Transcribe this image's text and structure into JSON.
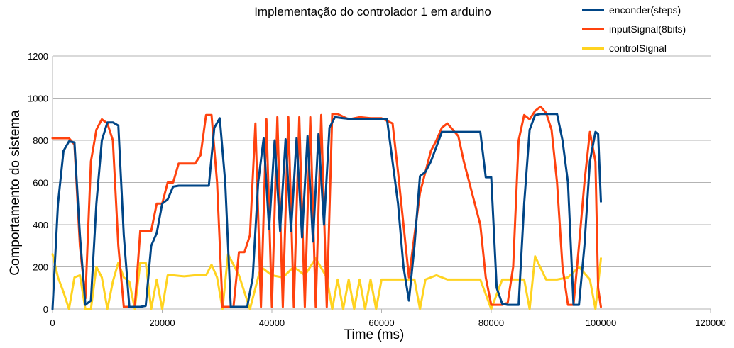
{
  "chart_data": {
    "type": "line",
    "title": "Implementação do controlador 1 em arduino",
    "xlabel": "Time (ms)",
    "ylabel": "Comportamento do sistema",
    "xlim": [
      0,
      120000
    ],
    "ylim": [
      0,
      1200
    ],
    "xticks": [
      "0",
      "20000",
      "40000",
      "60000",
      "80000",
      "100000",
      "120000"
    ],
    "yticks": [
      "0",
      "200",
      "400",
      "600",
      "800",
      "1000",
      "1200"
    ],
    "grid": true,
    "legend_position": "top-right",
    "series": [
      {
        "name": "enconder(steps)",
        "color": "#004586",
        "x": [
          0,
          1000,
          2000,
          3000,
          4000,
          5000,
          6000,
          7000,
          8000,
          9000,
          10000,
          11000,
          12000,
          13000,
          14000,
          15000,
          16000,
          17000,
          18000,
          19000,
          20000,
          21000,
          22000,
          23000,
          24000,
          25000,
          26000,
          27000,
          28000,
          28500,
          29500,
          30500,
          31500,
          32500,
          33500,
          34500,
          35500,
          36500,
          37500,
          38500,
          39500,
          40500,
          41500,
          42500,
          43500,
          44500,
          45500,
          46500,
          47500,
          48500,
          49500,
          50500,
          51500,
          53000,
          55000,
          57000,
          59000,
          61000,
          63000,
          64000,
          65000,
          66000,
          67000,
          68000,
          69000,
          70000,
          71000,
          72000,
          73000,
          74000,
          75000,
          76000,
          78000,
          79000,
          80000,
          81000,
          82000,
          83000,
          84000,
          85000,
          86000,
          87000,
          88000,
          89000,
          90000,
          91000,
          92000,
          93000,
          94000,
          95000,
          96000,
          97000,
          98000,
          99000,
          99500,
          100000
        ],
        "y": [
          0,
          500,
          750,
          795,
          790,
          350,
          20,
          40,
          500,
          800,
          885,
          885,
          870,
          350,
          10,
          10,
          10,
          15,
          300,
          360,
          500,
          520,
          580,
          585,
          585,
          585,
          585,
          585,
          585,
          585,
          860,
          905,
          600,
          10,
          10,
          10,
          10,
          150,
          600,
          810,
          380,
          800,
          370,
          805,
          370,
          810,
          340,
          820,
          320,
          830,
          400,
          860,
          910,
          905,
          900,
          900,
          900,
          900,
          500,
          200,
          40,
          300,
          630,
          650,
          700,
          770,
          840,
          840,
          840,
          840,
          840,
          840,
          840,
          625,
          625,
          100,
          25,
          20,
          20,
          20,
          500,
          850,
          920,
          925,
          925,
          925,
          925,
          800,
          600,
          20,
          20,
          300,
          700,
          840,
          830,
          510
        ]
      },
      {
        "name": "inputSignal(8bits)",
        "color": "#ff420e",
        "x": [
          0,
          1000,
          2000,
          3000,
          4000,
          5000,
          6000,
          7000,
          8000,
          9000,
          10000,
          11000,
          12000,
          13000,
          14000,
          15000,
          16000,
          17000,
          18000,
          19000,
          20000,
          21000,
          22000,
          23000,
          24000,
          25000,
          26000,
          27000,
          28000,
          29000,
          30000,
          31000,
          32000,
          33000,
          34000,
          35000,
          36000,
          37000,
          38000,
          39000,
          40000,
          41000,
          42000,
          43000,
          44000,
          45000,
          46000,
          47000,
          48000,
          49000,
          50000,
          51000,
          52000,
          54000,
          56000,
          58000,
          60000,
          62000,
          63000,
          64000,
          65000,
          66000,
          67000,
          68000,
          69000,
          70000,
          71000,
          72000,
          73000,
          74000,
          75000,
          76000,
          78000,
          79000,
          80000,
          81000,
          82000,
          83000,
          84000,
          85000,
          86000,
          87000,
          88000,
          89000,
          90000,
          91000,
          92000,
          93000,
          94000,
          95000,
          96000,
          97000,
          98000,
          99000,
          99500,
          100000
        ],
        "y": [
          810,
          810,
          810,
          810,
          780,
          300,
          50,
          700,
          850,
          900,
          880,
          800,
          300,
          10,
          10,
          10,
          370,
          370,
          370,
          500,
          500,
          600,
          600,
          690,
          690,
          690,
          690,
          730,
          920,
          920,
          600,
          10,
          10,
          10,
          270,
          270,
          350,
          880,
          10,
          900,
          10,
          910,
          10,
          910,
          10,
          910,
          10,
          910,
          10,
          920,
          10,
          925,
          925,
          900,
          910,
          905,
          905,
          880,
          650,
          400,
          150,
          350,
          550,
          650,
          750,
          800,
          860,
          880,
          850,
          820,
          700,
          600,
          400,
          150,
          20,
          20,
          20,
          30,
          200,
          800,
          920,
          900,
          940,
          960,
          930,
          850,
          600,
          200,
          20,
          20,
          300,
          600,
          840,
          700,
          100,
          10
        ]
      },
      {
        "name": "controlSignal",
        "color": "#ffd320",
        "x": [
          0,
          1000,
          2000,
          3000,
          4000,
          5000,
          6000,
          7000,
          8000,
          9000,
          10000,
          11000,
          12000,
          13000,
          14000,
          15000,
          16000,
          17000,
          18000,
          19000,
          20000,
          21000,
          22000,
          24000,
          26000,
          28000,
          29000,
          30000,
          31000,
          32000,
          34000,
          36000,
          38000,
          40000,
          42000,
          44000,
          46000,
          48000,
          50000,
          51000,
          52000,
          53000,
          54000,
          55000,
          56000,
          57000,
          58000,
          59000,
          60000,
          62000,
          64000,
          66000,
          67000,
          68000,
          70000,
          72000,
          74000,
          76000,
          78000,
          80000,
          82000,
          84000,
          86000,
          87000,
          88000,
          90000,
          92000,
          94000,
          96000,
          98000,
          99000,
          100000
        ],
        "y": [
          260,
          150,
          80,
          0,
          150,
          160,
          0,
          0,
          200,
          150,
          0,
          130,
          220,
          150,
          130,
          0,
          220,
          220,
          0,
          140,
          0,
          160,
          160,
          155,
          160,
          160,
          210,
          150,
          0,
          260,
          160,
          0,
          200,
          160,
          150,
          200,
          160,
          240,
          150,
          0,
          140,
          0,
          140,
          0,
          140,
          0,
          140,
          0,
          140,
          140,
          140,
          140,
          0,
          140,
          160,
          140,
          140,
          140,
          140,
          0,
          140,
          140,
          140,
          0,
          250,
          140,
          140,
          150,
          200,
          140,
          0,
          240
        ]
      }
    ]
  }
}
